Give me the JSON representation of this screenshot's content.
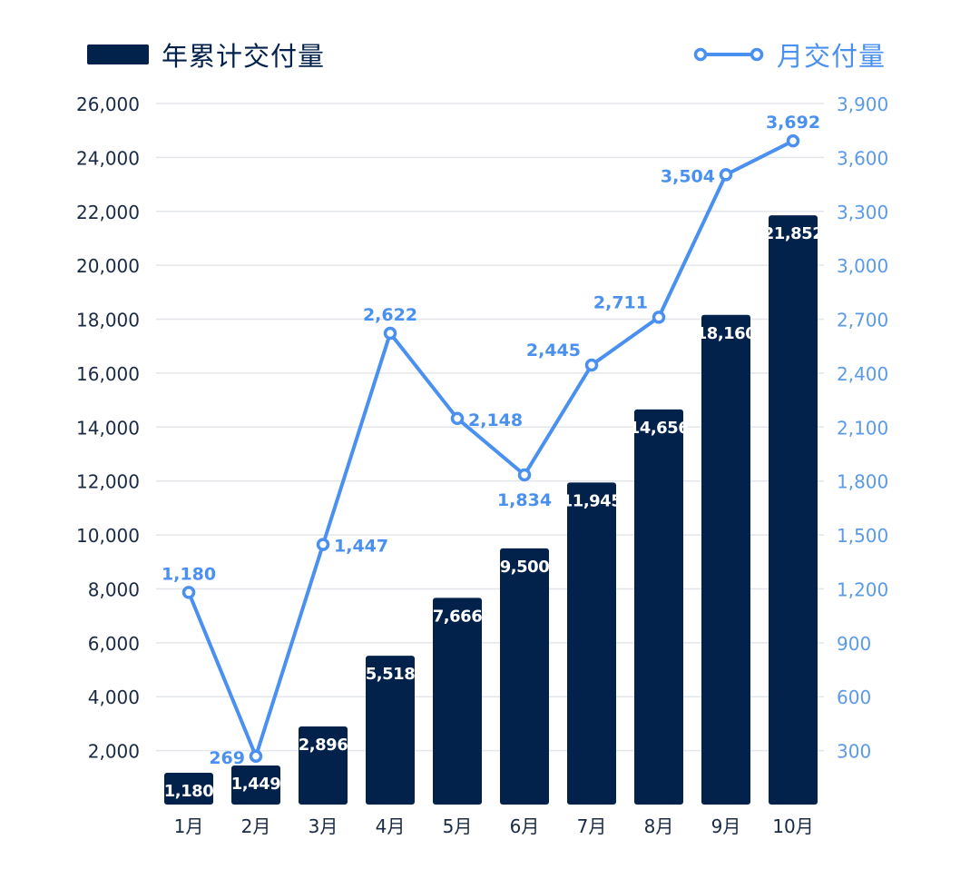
{
  "legend": {
    "bar_label": "年累计交付量",
    "line_label": "月交付量"
  },
  "colors": {
    "bar": "#02224c",
    "line": "#4a90f0",
    "grid": "#e3e6ea",
    "left_axis_text": "#1a2a44",
    "right_axis_text": "#5a9ae8",
    "bar_label_text": "#ffffff"
  },
  "chart_data": {
    "type": "bar",
    "title": "",
    "categories": [
      "1月",
      "2月",
      "3月",
      "4月",
      "5月",
      "6月",
      "7月",
      "8月",
      "9月",
      "10月"
    ],
    "series": [
      {
        "name": "年累计交付量",
        "type": "bar",
        "axis": "left",
        "values": [
          1180,
          1449,
          2896,
          5518,
          7666,
          9500,
          11945,
          14656,
          18160,
          21852
        ],
        "labels": [
          "1,180",
          "1,449",
          "2,896",
          "5,518",
          "7,666",
          "9,500",
          "11,945",
          "14,656",
          "18,160",
          "21,852"
        ]
      },
      {
        "name": "月交付量",
        "type": "line",
        "axis": "right",
        "values": [
          1180,
          269,
          1447,
          2622,
          2148,
          1834,
          2445,
          2711,
          3504,
          3692
        ],
        "labels": [
          "1,180",
          "269",
          "1,447",
          "2,622",
          "2,148",
          "1,834",
          "2,445",
          "2,711",
          "3,504",
          "3,692"
        ]
      }
    ],
    "left_axis": {
      "ylim": [
        0,
        26000
      ],
      "ticks": [
        2000,
        4000,
        6000,
        8000,
        10000,
        12000,
        14000,
        16000,
        18000,
        20000,
        22000,
        24000,
        26000
      ],
      "tick_labels": [
        "2,000",
        "4,000",
        "6,000",
        "8,000",
        "10,000",
        "12,000",
        "14,000",
        "16,000",
        "18,000",
        "20,000",
        "22,000",
        "24,000",
        "26,000"
      ]
    },
    "right_axis": {
      "ylim": [
        0,
        3900
      ],
      "ticks": [
        300,
        600,
        900,
        1200,
        1500,
        1800,
        2100,
        2400,
        2700,
        3000,
        3300,
        3600,
        3900
      ],
      "tick_labels": [
        "300",
        "600",
        "900",
        "1,200",
        "1,500",
        "1,800",
        "2,100",
        "2,400",
        "2,700",
        "3,000",
        "3,300",
        "3,600",
        "3,900"
      ]
    },
    "grid": true,
    "legend_position": "top"
  }
}
